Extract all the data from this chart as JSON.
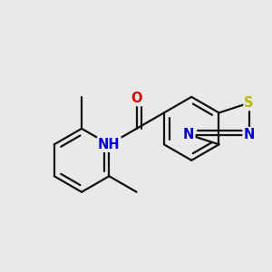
{
  "background_color": "#e9e9e9",
  "bond_color": "#111111",
  "atom_colors": {
    "O": "#dd0000",
    "N": "#0000cc",
    "S": "#bbbb00",
    "H": "#111111",
    "C": "#111111"
  },
  "line_width": 1.6,
  "font_size": 10.5,
  "dbo": 0.05
}
